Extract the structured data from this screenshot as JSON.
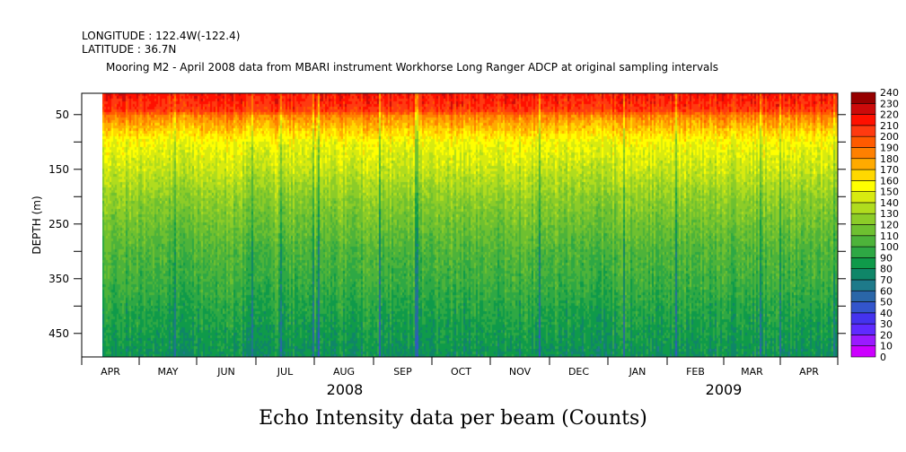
{
  "header": {
    "longitude": "LONGITUDE : 122.4W(-122.4)",
    "latitude": "LATITUDE : 36.7N"
  },
  "chart_data": {
    "type": "heatmap",
    "title": "Mooring M2 - April 2008 data from MBARI instrument Workhorse Long Ranger ADCP at original sampling intervals",
    "xlabel": "Echo Intensity data per beam (Counts)",
    "ylabel": "DEPTH (m)",
    "x_tick_labels": [
      "APR",
      "MAY",
      "JUN",
      "JUL",
      "AUG",
      "SEP",
      "OCT",
      "NOV",
      "DEC",
      "JAN",
      "FEB",
      "MAR",
      "APR"
    ],
    "year_labels": [
      "2008",
      "2009"
    ],
    "y_tick_labels": [
      "50",
      "150",
      "250",
      "350",
      "450"
    ],
    "ylim": [
      493,
      11
    ],
    "xlim": [
      "2008-04-01",
      "2009-04-30"
    ],
    "data_start": "2008-04-12",
    "mean_profile": {
      "depth": [
        11,
        40,
        50,
        100,
        150,
        200,
        250,
        300,
        350,
        400,
        450,
        493
      ],
      "value": [
        215,
        205,
        185,
        152,
        140,
        125,
        115,
        105,
        100,
        92,
        86,
        80
      ]
    },
    "colorbar": {
      "levels": [
        0,
        10,
        20,
        30,
        40,
        50,
        60,
        70,
        80,
        90,
        100,
        110,
        120,
        130,
        140,
        150,
        160,
        170,
        180,
        190,
        200,
        210,
        220,
        230,
        240
      ],
      "colors": [
        "#cc00ff",
        "#9a1aff",
        "#5f2aff",
        "#4433ee",
        "#3355cc",
        "#2a66a8",
        "#1e7a8a",
        "#0f8668",
        "#0f9a4a",
        "#2ea844",
        "#4db33a",
        "#6ec030",
        "#8ccc28",
        "#b0dc1e",
        "#d8ea10",
        "#ffff00",
        "#ffd800",
        "#ffaa00",
        "#ff8000",
        "#ff5a00",
        "#ff3a10",
        "#ff1000",
        "#cc0a0a",
        "#960000"
      ]
    }
  }
}
